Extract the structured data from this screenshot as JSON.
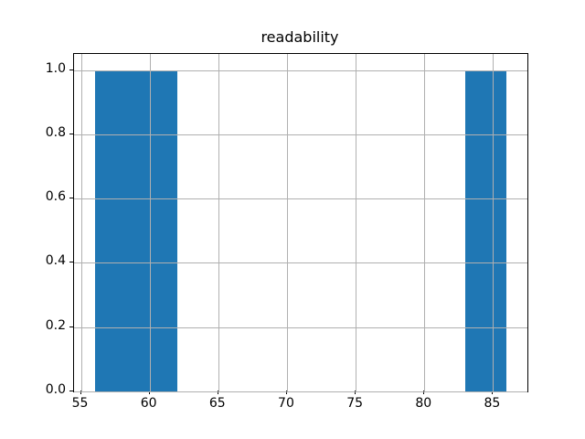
{
  "chart_data": {
    "type": "bar",
    "subtype": "histogram",
    "title": "readability",
    "xlabel": "",
    "ylabel": "",
    "xlim": [
      54.5,
      87.5
    ],
    "ylim": [
      0,
      1.05
    ],
    "grid": true,
    "legend": false,
    "bars": [
      {
        "x0": 56,
        "x1": 62,
        "height": 1.0
      },
      {
        "x0": 83,
        "x1": 86,
        "height": 1.0
      }
    ],
    "xticks": [
      {
        "value": 55,
        "label": "55"
      },
      {
        "value": 60,
        "label": "60"
      },
      {
        "value": 65,
        "label": "65"
      },
      {
        "value": 70,
        "label": "70"
      },
      {
        "value": 75,
        "label": "75"
      },
      {
        "value": 80,
        "label": "80"
      },
      {
        "value": 85,
        "label": "85"
      }
    ],
    "yticks": [
      {
        "value": 0.0,
        "label": "0.0"
      },
      {
        "value": 0.2,
        "label": "0.2"
      },
      {
        "value": 0.4,
        "label": "0.4"
      },
      {
        "value": 0.6,
        "label": "0.6"
      },
      {
        "value": 0.8,
        "label": "0.8"
      },
      {
        "value": 1.0,
        "label": "1.0"
      }
    ],
    "colors": {
      "bar": "#1f77b4",
      "grid": "#b0b0b0",
      "spine": "#000000",
      "background": "#ffffff"
    }
  }
}
